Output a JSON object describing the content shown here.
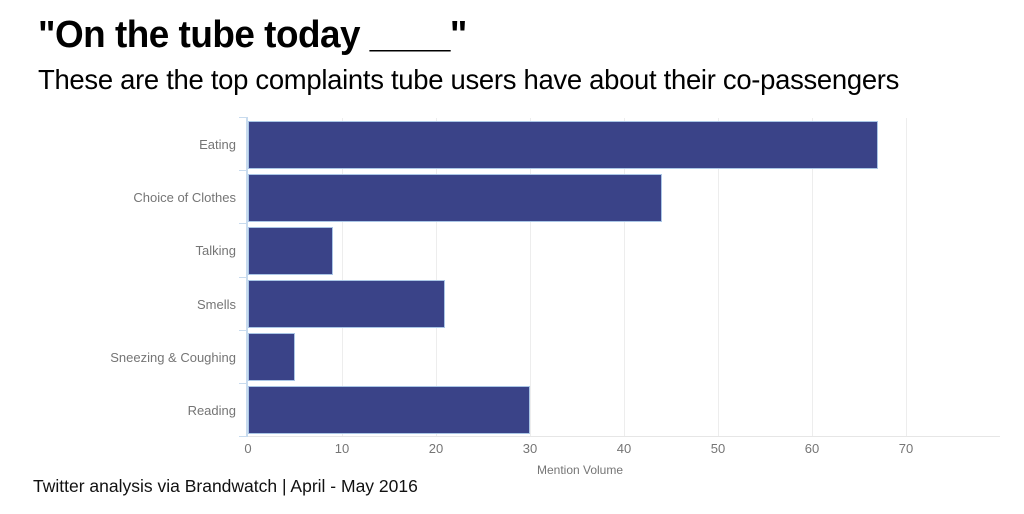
{
  "header": {
    "title": "\"On the tube today ____\"",
    "subtitle": "These are the top complaints tube users have about their co-passengers"
  },
  "chart_data": {
    "type": "bar",
    "orientation": "horizontal",
    "title": "\"On the tube today ____\"",
    "subtitle": "These are the top complaints tube users have about their co-passengers",
    "categories": [
      "Eating",
      "Choice of Clothes",
      "Talking",
      "Smells",
      "Sneezing & Coughing",
      "Reading"
    ],
    "values": [
      67,
      44,
      9,
      21,
      5,
      30
    ],
    "xlabel": "Mention Volume",
    "ylabel": "",
    "x_ticks": [
      0,
      10,
      20,
      30,
      40,
      50,
      60,
      70
    ],
    "xlim": [
      0,
      80
    ],
    "grid": true,
    "legend": false,
    "colors": {
      "bar_fill": "#3a4388",
      "bar_stroke": "#aac6e6",
      "axis_line": "#c8dbee",
      "gridline": "#ededed",
      "baseline": "#e6e6e6",
      "label_gray": "#757575"
    }
  },
  "footer": {
    "source": "Twitter analysis via Brandwatch | April - May 2016"
  }
}
